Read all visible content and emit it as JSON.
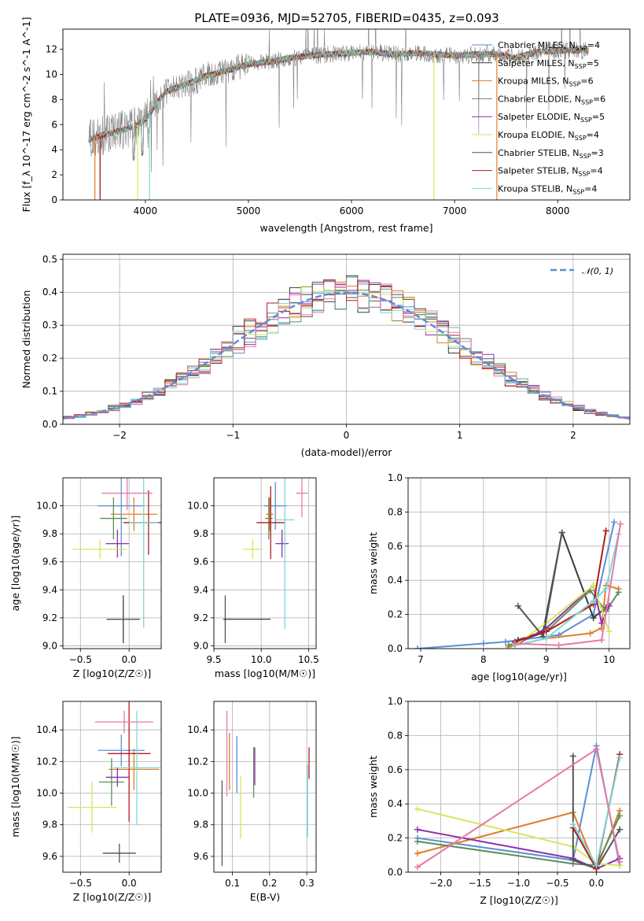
{
  "figure": {
    "title": "PLATE=0936, MJD=52705, FIBERID=0435, z=0.093",
    "colors": {
      "Chabrier MILES": "#5b8fd6",
      "Salpeter MILES": "#3a3a3a",
      "Kroupa MILES": "#e07e2c",
      "Chabrier ELODIE": "#5c8e5c",
      "Salpeter ELODIE": "#8e2fa8",
      "Kroupa ELODIE": "#d6e65a",
      "Chabrier STELIB": "#555555",
      "Salpeter STELIB": "#b31c1c",
      "Kroupa STELIB": "#7dd8d8",
      "data": "#808080",
      "pink": "#e67aa8",
      "gaussian": "#5b8fd6"
    }
  },
  "chart_data": [
    {
      "id": "spectrum",
      "type": "line",
      "xlabel": "wavelength [Angstrom, rest frame]",
      "ylabel": "Flux [f_λ 10^-17 erg cm^-2 s^-1 A^-1]",
      "xlim": [
        3200,
        8700
      ],
      "ylim": [
        0,
        13.6
      ],
      "xticks": [
        4000,
        5000,
        6000,
        7000,
        8000
      ],
      "yticks": [
        0,
        2,
        4,
        6,
        8,
        10,
        12
      ],
      "grid": false,
      "legend_position": "top-right",
      "legend": [
        {
          "name": "Chabrier MILES",
          "nssp": "4"
        },
        {
          "name": "Salpeter MILES",
          "nssp": "5"
        },
        {
          "name": "Kroupa MILES",
          "nssp": "6"
        },
        {
          "name": "Chabrier ELODIE",
          "nssp": "6"
        },
        {
          "name": "Salpeter ELODIE",
          "nssp": "5"
        },
        {
          "name": "Kroupa ELODIE",
          "nssp": "4"
        },
        {
          "name": "Chabrier STELIB",
          "nssp": "3"
        },
        {
          "name": "Salpeter STELIB",
          "nssp": "4"
        },
        {
          "name": "Kroupa STELIB",
          "nssp": "4"
        }
      ],
      "continuum": {
        "x": [
          3450,
          3600,
          3700,
          3800,
          3900,
          4000,
          4100,
          4200,
          4300,
          4400,
          4600,
          4800,
          5000,
          5200,
          5400,
          5600,
          5800,
          6000,
          6200,
          6400,
          6600,
          6800,
          7000,
          7200,
          7400,
          7600,
          7800,
          8000,
          8300
        ],
        "y": [
          4.8,
          5.2,
          5.4,
          5.6,
          5.9,
          6.4,
          7.6,
          8.6,
          8.9,
          9.2,
          9.9,
          10.3,
          10.8,
          11.0,
          11.3,
          11.5,
          11.6,
          11.7,
          11.8,
          11.6,
          11.7,
          11.6,
          11.5,
          11.6,
          11.6,
          11.3,
          11.8,
          11.9,
          11.9
        ]
      }
    },
    {
      "id": "residuals",
      "type": "line",
      "xlabel": "(data-model)/error",
      "ylabel": "Normed distribution",
      "xlim": [
        -2.5,
        2.5
      ],
      "ylim": [
        0,
        0.515
      ],
      "xticks": [
        -2,
        -1,
        0,
        1,
        2
      ],
      "yticks": [
        0.0,
        0.1,
        0.2,
        0.3,
        0.4,
        0.5
      ],
      "grid": true,
      "legend_position": "top-right",
      "legend": [
        "N(0,1)"
      ],
      "bin_width": 0.1
    },
    {
      "id": "age-vs-Z",
      "type": "scatter",
      "xlabel": "Z [log10(Z/Z☉)]",
      "ylabel": "age  [log10(age/yr)]",
      "xlim": [
        -0.68,
        0.33
      ],
      "ylim": [
        8.98,
        10.2
      ],
      "xticks": [
        -0.5,
        0.0
      ],
      "yticks": [
        9.0,
        9.2,
        9.4,
        9.6,
        9.8,
        10.0
      ],
      "grid": true,
      "points": [
        {
          "model": "Salpeter MILES",
          "x": -0.06,
          "y": 9.19,
          "xerr": 0.17,
          "yerr": 0.17
        },
        {
          "model": "Chabrier STELIB",
          "x": -0.06,
          "y": 9.19,
          "xerr": 0.17,
          "yerr": 0.17
        },
        {
          "model": "Chabrier MILES",
          "x": -0.08,
          "y": 10.0,
          "xerr": 0.24,
          "yerr": 0.36
        },
        {
          "model": "Kroupa MILES",
          "x": 0.05,
          "y": 9.94,
          "xerr": 0.24,
          "yerr": 0.12
        },
        {
          "model": "Chabrier ELODIE",
          "x": -0.16,
          "y": 9.91,
          "xerr": 0.14,
          "yerr": 0.15
        },
        {
          "model": "Salpeter ELODIE",
          "x": -0.12,
          "y": 9.73,
          "xerr": 0.12,
          "yerr": 0.1
        },
        {
          "model": "Kroupa ELODIE",
          "x": -0.3,
          "y": 9.69,
          "xerr": 0.28,
          "yerr": 0.07
        },
        {
          "model": "Salpeter STELIB",
          "x": 0.2,
          "y": 9.88,
          "xerr": 0.26,
          "yerr": 0.23
        },
        {
          "model": "Kroupa STELIB",
          "x": 0.15,
          "y": 9.88,
          "xerr": 0.15,
          "yerr": 0.75
        },
        {
          "model": "pink",
          "x": -0.02,
          "y": 10.09,
          "xerr": 0.26,
          "yerr": 0.12
        }
      ]
    },
    {
      "id": "age-vs-mass",
      "type": "scatter",
      "xlabel": "mass [log10(M/M☉)]",
      "ylabel": "",
      "xlim": [
        9.5,
        10.58
      ],
      "ylim": [
        8.98,
        10.2
      ],
      "xticks": [
        9.5,
        10.0,
        10.5
      ],
      "yticks": [
        9.0,
        9.2,
        9.4,
        9.6,
        9.8,
        10.0
      ],
      "grid": true,
      "points": [
        {
          "model": "Chabrier STELIB",
          "x": 9.62,
          "y": 9.19,
          "xerr": 0.01,
          "yerr": 0.17
        },
        {
          "model": "Salpeter MILES",
          "x": 9.85,
          "y": 9.19,
          "xerr": 0.25,
          "yerr": 0.0
        },
        {
          "model": "Chabrier MILES",
          "x": 10.15,
          "y": 10.0,
          "xerr": 0.12,
          "yerr": 0.17
        },
        {
          "model": "Kroupa MILES",
          "x": 10.09,
          "y": 9.94,
          "xerr": 0.04,
          "yerr": 0.12
        },
        {
          "model": "Chabrier ELODIE",
          "x": 10.08,
          "y": 9.91,
          "xerr": 0.04,
          "yerr": 0.15
        },
        {
          "model": "Salpeter ELODIE",
          "x": 10.22,
          "y": 9.73,
          "xerr": 0.07,
          "yerr": 0.1
        },
        {
          "model": "Kroupa ELODIE",
          "x": 9.91,
          "y": 9.69,
          "xerr": 0.1,
          "yerr": 0.07
        },
        {
          "model": "Salpeter STELIB",
          "x": 10.1,
          "y": 9.88,
          "xerr": 0.15,
          "yerr": 0.26
        },
        {
          "model": "Kroupa STELIB",
          "x": 10.25,
          "y": 9.9,
          "xerr": 0.1,
          "yerr": 0.78
        },
        {
          "model": "pink",
          "x": 10.43,
          "y": 10.09,
          "xerr": 0.06,
          "yerr": 0.17
        }
      ]
    },
    {
      "id": "weight-vs-age",
      "type": "line",
      "xlabel": "age  [log10(age/yr)]",
      "ylabel": "mass weight",
      "xlim": [
        6.8,
        10.33
      ],
      "ylim": [
        0,
        1.0
      ],
      "xticks": [
        7,
        8,
        9,
        10
      ],
      "yticks": [
        0.0,
        0.2,
        0.4,
        0.6,
        0.8,
        1.0
      ],
      "grid": true,
      "series": [
        {
          "model": "Chabrier MILES",
          "x": [
            6.95,
            8.0,
            8.35,
            9.2,
            9.75,
            10.08
          ],
          "y": [
            0.0,
            0.03,
            0.04,
            0.08,
            0.2,
            0.74
          ]
        },
        {
          "model": "Salpeter MILES",
          "x": [
            8.55,
            8.95,
            9.25,
            9.75,
            9.95
          ],
          "y": [
            0.05,
            0.1,
            0.68,
            0.18,
            0.24
          ]
        },
        {
          "model": "Kroupa MILES",
          "x": [
            8.4,
            9.0,
            9.7,
            9.88,
            9.95,
            10.15
          ],
          "y": [
            0.01,
            0.06,
            0.09,
            0.12,
            0.37,
            0.35
          ]
        },
        {
          "model": "Chabrier ELODIE",
          "x": [
            8.4,
            9.0,
            9.7,
            9.95,
            10.15
          ],
          "y": [
            0.02,
            0.1,
            0.34,
            0.22,
            0.33
          ]
        },
        {
          "model": "Salpeter ELODIE",
          "x": [
            8.5,
            9.0,
            9.75,
            9.88,
            10.0
          ],
          "y": [
            0.02,
            0.12,
            0.37,
            0.15,
            0.25
          ]
        },
        {
          "model": "Kroupa ELODIE",
          "x": [
            8.5,
            9.0,
            9.75,
            10.0
          ],
          "y": [
            0.02,
            0.15,
            0.37,
            0.1
          ]
        },
        {
          "model": "Chabrier STELIB",
          "x": [
            8.55,
            8.95,
            9.25
          ],
          "y": [
            0.25,
            0.07,
            0.68
          ]
        },
        {
          "model": "Salpeter STELIB",
          "x": [
            8.5,
            9.0,
            9.75,
            9.95
          ],
          "y": [
            0.04,
            0.1,
            0.26,
            0.69
          ]
        },
        {
          "model": "Kroupa STELIB",
          "x": [
            8.5,
            9.0,
            9.75,
            9.95,
            10.15
          ],
          "y": [
            0.02,
            0.06,
            0.28,
            0.35,
            0.67
          ]
        },
        {
          "model": "pink",
          "x": [
            8.5,
            9.2,
            9.88,
            10.18
          ],
          "y": [
            0.03,
            0.02,
            0.05,
            0.73
          ]
        }
      ]
    },
    {
      "id": "mass-vs-Z",
      "type": "scatter",
      "xlabel": "Z [log10(Z/Z☉)]",
      "ylabel": "mass [log10(M/M☉)]",
      "xlim": [
        -0.68,
        0.33
      ],
      "ylim": [
        9.5,
        10.58
      ],
      "xticks": [
        -0.5,
        0.0
      ],
      "yticks": [
        9.6,
        9.8,
        10.0,
        10.2,
        10.4
      ],
      "grid": true,
      "points": [
        {
          "model": "Salpeter MILES",
          "x": -0.1,
          "y": 9.62,
          "xerr": 0.17,
          "yerr": 0.0
        },
        {
          "model": "Chabrier STELIB",
          "x": -0.1,
          "y": 9.62,
          "xerr": 0.0,
          "yerr": 0.06
        },
        {
          "model": "Chabrier MILES",
          "x": -0.08,
          "y": 10.27,
          "xerr": 0.24,
          "yerr": 0.1
        },
        {
          "model": "Kroupa MILES",
          "x": 0.05,
          "y": 10.15,
          "xerr": 0.26,
          "yerr": 0.13
        },
        {
          "model": "Chabrier ELODIE",
          "x": -0.18,
          "y": 10.07,
          "xerr": 0.13,
          "yerr": 0.15
        },
        {
          "model": "Salpeter ELODIE",
          "x": -0.12,
          "y": 10.1,
          "xerr": 0.12,
          "yerr": 0.06
        },
        {
          "model": "Kroupa ELODIE",
          "x": -0.38,
          "y": 9.91,
          "xerr": 0.25,
          "yerr": 0.16
        },
        {
          "model": "Salpeter STELIB",
          "x": 0.0,
          "y": 10.25,
          "xerr": 0.22,
          "yerr": 0.43
        },
        {
          "model": "Kroupa STELIB",
          "x": 0.08,
          "y": 10.16,
          "xerr": 0.24,
          "yerr": 0.36
        },
        {
          "model": "pink",
          "x": -0.05,
          "y": 10.45,
          "xerr": 0.3,
          "yerr": 0.07
        }
      ]
    },
    {
      "id": "mass-vs-EBV",
      "type": "scatter",
      "xlabel": "E(B-V)",
      "ylabel": "",
      "xlim": [
        0.05,
        0.325
      ],
      "ylim": [
        9.5,
        10.58
      ],
      "xticks": [
        0.1,
        0.2,
        0.3
      ],
      "yticks": [
        9.6,
        9.8,
        10.0,
        10.2,
        10.4
      ],
      "grid": true,
      "points": [
        {
          "model": "Chabrier STELIB",
          "x": 0.072,
          "y": 9.81,
          "yerr": 0.27
        },
        {
          "model": "pink",
          "x": 0.085,
          "y": 10.25,
          "yerr": 0.27
        },
        {
          "model": "Kroupa MILES",
          "x": 0.092,
          "y": 10.2,
          "yerr": 0.18
        },
        {
          "model": "Chabrier MILES",
          "x": 0.112,
          "y": 10.18,
          "yerr": 0.18
        },
        {
          "model": "Kroupa ELODIE",
          "x": 0.122,
          "y": 9.91,
          "yerr": 0.2
        },
        {
          "model": "Chabrier ELODIE",
          "x": 0.157,
          "y": 10.13,
          "yerr": 0.16
        },
        {
          "model": "Salpeter ELODIE",
          "x": 0.16,
          "y": 10.17,
          "yerr": 0.12
        },
        {
          "model": "Salpeter STELIB",
          "x": 0.306,
          "y": 10.19,
          "yerr": 0.1
        },
        {
          "model": "Kroupa STELIB",
          "x": 0.302,
          "y": 9.95,
          "yerr": 0.23
        }
      ]
    },
    {
      "id": "weight-vs-Z",
      "type": "line",
      "xlabel": "Z [log10(Z/Z☉)]",
      "ylabel": "mass weight",
      "xlim": [
        -2.42,
        0.43
      ],
      "ylim": [
        0,
        1.0
      ],
      "xticks": [
        -2.0,
        -1.5,
        -1.0,
        -0.5,
        0.0
      ],
      "yticks": [
        0.0,
        0.2,
        0.4,
        0.6,
        0.8,
        1.0
      ],
      "grid": true,
      "series": [
        {
          "model": "Chabrier MILES",
          "x": [
            -2.3,
            -0.3,
            0.0,
            0.3
          ],
          "y": [
            0.2,
            0.07,
            0.74,
            0.04
          ]
        },
        {
          "model": "Kroupa MILES",
          "x": [
            -2.3,
            -0.3,
            0.0,
            0.3
          ],
          "y": [
            0.11,
            0.35,
            0.02,
            0.36
          ]
        },
        {
          "model": "Chabrier ELODIE",
          "x": [
            -2.3,
            -0.3,
            0.0,
            0.3
          ],
          "y": [
            0.18,
            0.05,
            0.04,
            0.33
          ]
        },
        {
          "model": "Salpeter ELODIE",
          "x": [
            -2.3,
            -0.3,
            0.0,
            0.3
          ],
          "y": [
            0.25,
            0.08,
            0.02,
            0.08
          ]
        },
        {
          "model": "Kroupa ELODIE",
          "x": [
            -2.3,
            -0.3,
            0.0,
            0.3
          ],
          "y": [
            0.37,
            0.15,
            0.05,
            0.04
          ]
        },
        {
          "model": "Chabrier STELIB",
          "x": [
            -0.3,
            -0.3,
            0.0,
            0.3
          ],
          "y": [
            0.68,
            0.07,
            0.02,
            0.25
          ]
        },
        {
          "model": "Salpeter STELIB",
          "x": [
            -0.3,
            0.0,
            0.3
          ],
          "y": [
            0.26,
            0.02,
            0.69
          ]
        },
        {
          "model": "Kroupa STELIB",
          "x": [
            -0.3,
            0.0,
            0.3
          ],
          "y": [
            0.28,
            0.04,
            0.67
          ]
        },
        {
          "model": "pink",
          "x": [
            -2.3,
            0.0,
            0.3
          ],
          "y": [
            0.03,
            0.72,
            0.06
          ]
        }
      ]
    }
  ]
}
